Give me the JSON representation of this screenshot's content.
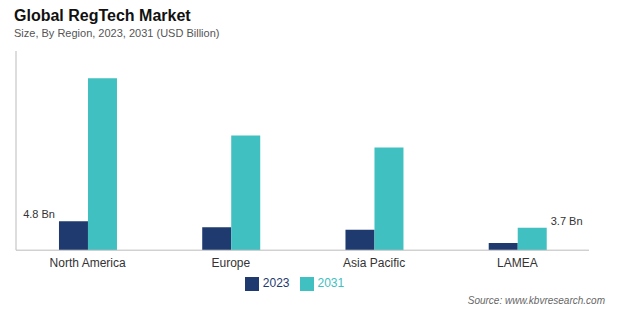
{
  "chart_data": {
    "type": "bar",
    "title": "Global RegTech Market",
    "subtitle": "Size, By Region, 2023, 2031 (USD Billion)",
    "source": "Source: www.kbvresearch.com",
    "categories": [
      "North America",
      "Europe",
      "Asia Pacific",
      "LAMEA"
    ],
    "series": [
      {
        "name": "2023",
        "color": "#1e3a6e",
        "values": [
          4.8,
          3.8,
          3.4,
          1.2
        ]
      },
      {
        "name": "2031",
        "color": "#40c0c0",
        "values": [
          28.5,
          19.0,
          17.0,
          3.7
        ]
      }
    ],
    "ylim": [
      0,
      33
    ],
    "grid": false,
    "legend": "bottom",
    "tick_labels": "x",
    "annotations": [
      {
        "text": "4.8 Bn",
        "category": "North America",
        "series": "2023"
      },
      {
        "text": "3.7 Bn",
        "category": "LAMEA",
        "series": "2031"
      }
    ]
  }
}
